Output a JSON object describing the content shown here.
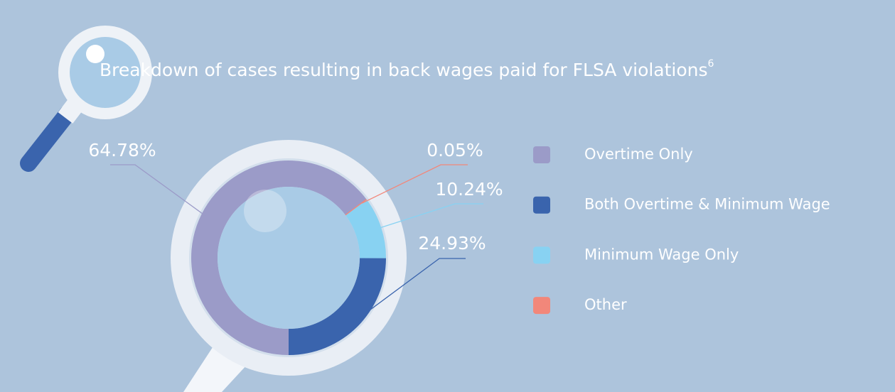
{
  "chart_data": {
    "type": "donut",
    "title": "Breakdown of cases resulting in back wages paid for FLSA violations",
    "title_footnote": "6",
    "categories": [
      "Overtime Only",
      "Both Overtime & Minimum Wage",
      "Minimum Wage Only",
      "Other"
    ],
    "values": [
      64.78,
      24.93,
      10.24,
      0.05
    ],
    "value_labels": [
      "64.78%",
      "24.93%",
      "10.24%",
      "0.05%"
    ],
    "colors": [
      "#9b9bc8",
      "#3a64ad",
      "#88d2f2",
      "#f2877a"
    ],
    "legend": "right"
  }
}
